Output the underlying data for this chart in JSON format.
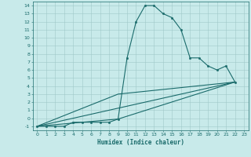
{
  "xlabel": "Humidex (Indice chaleur)",
  "ylabel": "",
  "background_color": "#c8eaea",
  "line_color": "#1a6b6b",
  "grid_color": "#a0c8c8",
  "xlim": [
    -0.5,
    23.5
  ],
  "ylim": [
    -1.5,
    14.5
  ],
  "xticks": [
    0,
    1,
    2,
    3,
    4,
    5,
    6,
    7,
    8,
    9,
    10,
    11,
    12,
    13,
    14,
    15,
    16,
    17,
    18,
    19,
    20,
    21,
    22,
    23
  ],
  "yticks": [
    -1,
    0,
    1,
    2,
    3,
    4,
    5,
    6,
    7,
    8,
    9,
    10,
    11,
    12,
    13,
    14
  ],
  "series": [
    [
      0,
      -1
    ],
    [
      1,
      -1
    ],
    [
      2,
      -1
    ],
    [
      3,
      -1
    ],
    [
      4,
      -0.5
    ],
    [
      5,
      -0.5
    ],
    [
      6,
      -0.5
    ],
    [
      7,
      -0.5
    ],
    [
      8,
      -0.5
    ],
    [
      9,
      -0.1
    ],
    [
      10,
      7.5
    ],
    [
      11,
      12
    ],
    [
      12,
      14
    ],
    [
      13,
      14
    ],
    [
      14,
      13
    ],
    [
      15,
      12.5
    ],
    [
      16,
      11
    ],
    [
      17,
      7.5
    ],
    [
      18,
      7.5
    ],
    [
      19,
      6.5
    ],
    [
      20,
      6
    ],
    [
      21,
      6.5
    ],
    [
      22,
      4.5
    ]
  ],
  "line2": [
    [
      0,
      -1
    ],
    [
      22,
      4.5
    ]
  ],
  "line3": [
    [
      0,
      -1
    ],
    [
      9,
      3
    ],
    [
      22,
      4.5
    ]
  ],
  "line4": [
    [
      0,
      -1
    ],
    [
      9,
      -0.1
    ],
    [
      22,
      4.5
    ]
  ]
}
